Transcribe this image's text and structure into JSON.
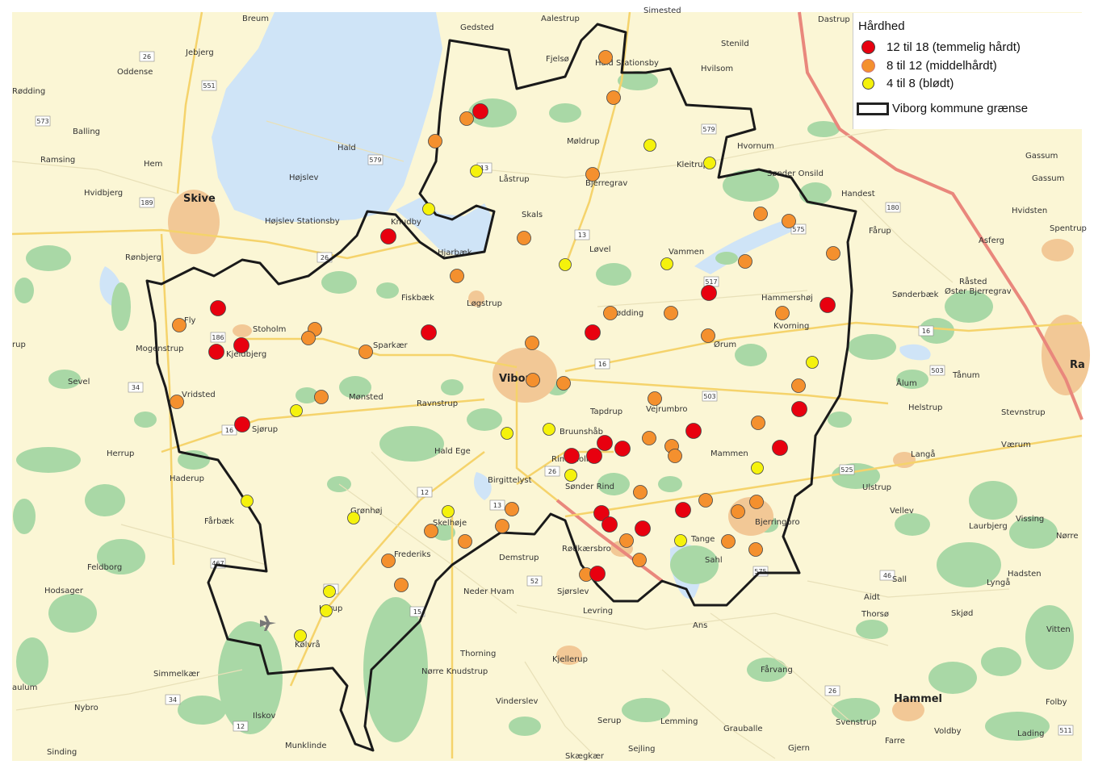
{
  "legend": {
    "title": "Hårdhed",
    "items": [
      {
        "label": "12 til 18 (temmelig hårdt)",
        "color": "#e8000f"
      },
      {
        "label": "8 til 12 (middelhårdt)",
        "color": "#f4902e"
      },
      {
        "label": "4 til 8 (blødt)",
        "color": "#f5f20c"
      }
    ],
    "boundary_label": "Viborg kommune grænse"
  },
  "colors": {
    "land": "#fbf6d5",
    "water": "#cfe4f7",
    "forest": "#a9d8a6",
    "town": "#f2c896",
    "boundary": "#1a1a1a",
    "motorway": "#e9877c",
    "main_road": "#f5d36b"
  },
  "places": [
    "Breum",
    "Gedsted",
    "Aalestrup",
    "Jebjerg",
    "Oddense",
    "Rødding",
    "Balling",
    "Ramsing",
    "Hem",
    "Hald",
    "Højslev",
    "Skive",
    "Hvidbjerg",
    "Højslev Stationsby",
    "Rønbjerg",
    "Fly",
    "Stoholm",
    "Mogenstrup",
    "Kjeldbjerg",
    "Sparkær",
    "Sevel",
    "Vridsted",
    "Sjørup",
    "Mønsted",
    "Ravnstrup",
    "Herrup",
    "Haderup",
    "Fårbæk",
    "Feldborg",
    "Hodsager",
    "Grønhøj",
    "Skelhøje",
    "Frederiks",
    "Karup",
    "Kølvrå",
    "Simmelkær",
    "Nybro",
    "Ilskov",
    "Munklinde",
    "Sinding",
    "aulum",
    "Fjelsø",
    "Hald Stationsby",
    "Stenild",
    "Hvilsom",
    "Møldrup",
    "Låstrup",
    "Bjerregrav",
    "Kleitrup",
    "Hvornum",
    "Sønder Onsild",
    "Handest",
    "Skals",
    "Knudby",
    "Hjarbæk",
    "Løvel",
    "Vammen",
    "Fiskbæk",
    "Løgstrup",
    "Viborg",
    "Rødding",
    "Hammershøj",
    "Kvorning",
    "Ørum",
    "Tapdrup",
    "Vejrumbro",
    "Bruunshåb",
    "Rindsholm",
    "Birgittelyst",
    "Hald Ege",
    "Sønder Rind",
    "Mammen",
    "Bjerringbro",
    "Tange",
    "Sahl",
    "Rødkærsbro",
    "Demstrup",
    "Sjørslev",
    "Levring",
    "Neder Hvam",
    "Ans",
    "Thorning",
    "Nørre Knudstrup",
    "Kjellerup",
    "Vinderslev",
    "Serup",
    "Lemming",
    "Grauballe",
    "Sejling",
    "Skægkær",
    "Gjern",
    "Fårvang",
    "Hammel",
    "Svenstrup",
    "Farre",
    "Voldby",
    "Lading",
    "Folby",
    "Hadsten",
    "Vitten",
    "Skjød",
    "Lyngå",
    "Sall",
    "Thorsø",
    "Aidt",
    "Vellev",
    "Ulstrup",
    "Vissing",
    "Laurbjerg",
    "Nørre",
    "Langå",
    "Værum",
    "Stevnstrup",
    "Helstrup",
    "Ålum",
    "Tånum",
    "Øster Bjerregrav",
    "Råsted",
    "Sønderbæk",
    "Asferg",
    "Fårup",
    "Hvidsten",
    "Spentrup",
    "Gassum",
    "Dastrup",
    "Simested",
    "Ra",
    "rup",
    "Gassum"
  ],
  "road_numbers": [
    "26",
    "551",
    "573",
    "579",
    "189",
    "26",
    "186",
    "34",
    "16",
    "12",
    "467",
    "13",
    "16",
    "503",
    "26",
    "12",
    "52",
    "13",
    "579",
    "517",
    "575",
    "180",
    "16",
    "503",
    "525",
    "575",
    "46",
    "26",
    "511",
    "34",
    "12",
    "13",
    "15"
  ]
}
